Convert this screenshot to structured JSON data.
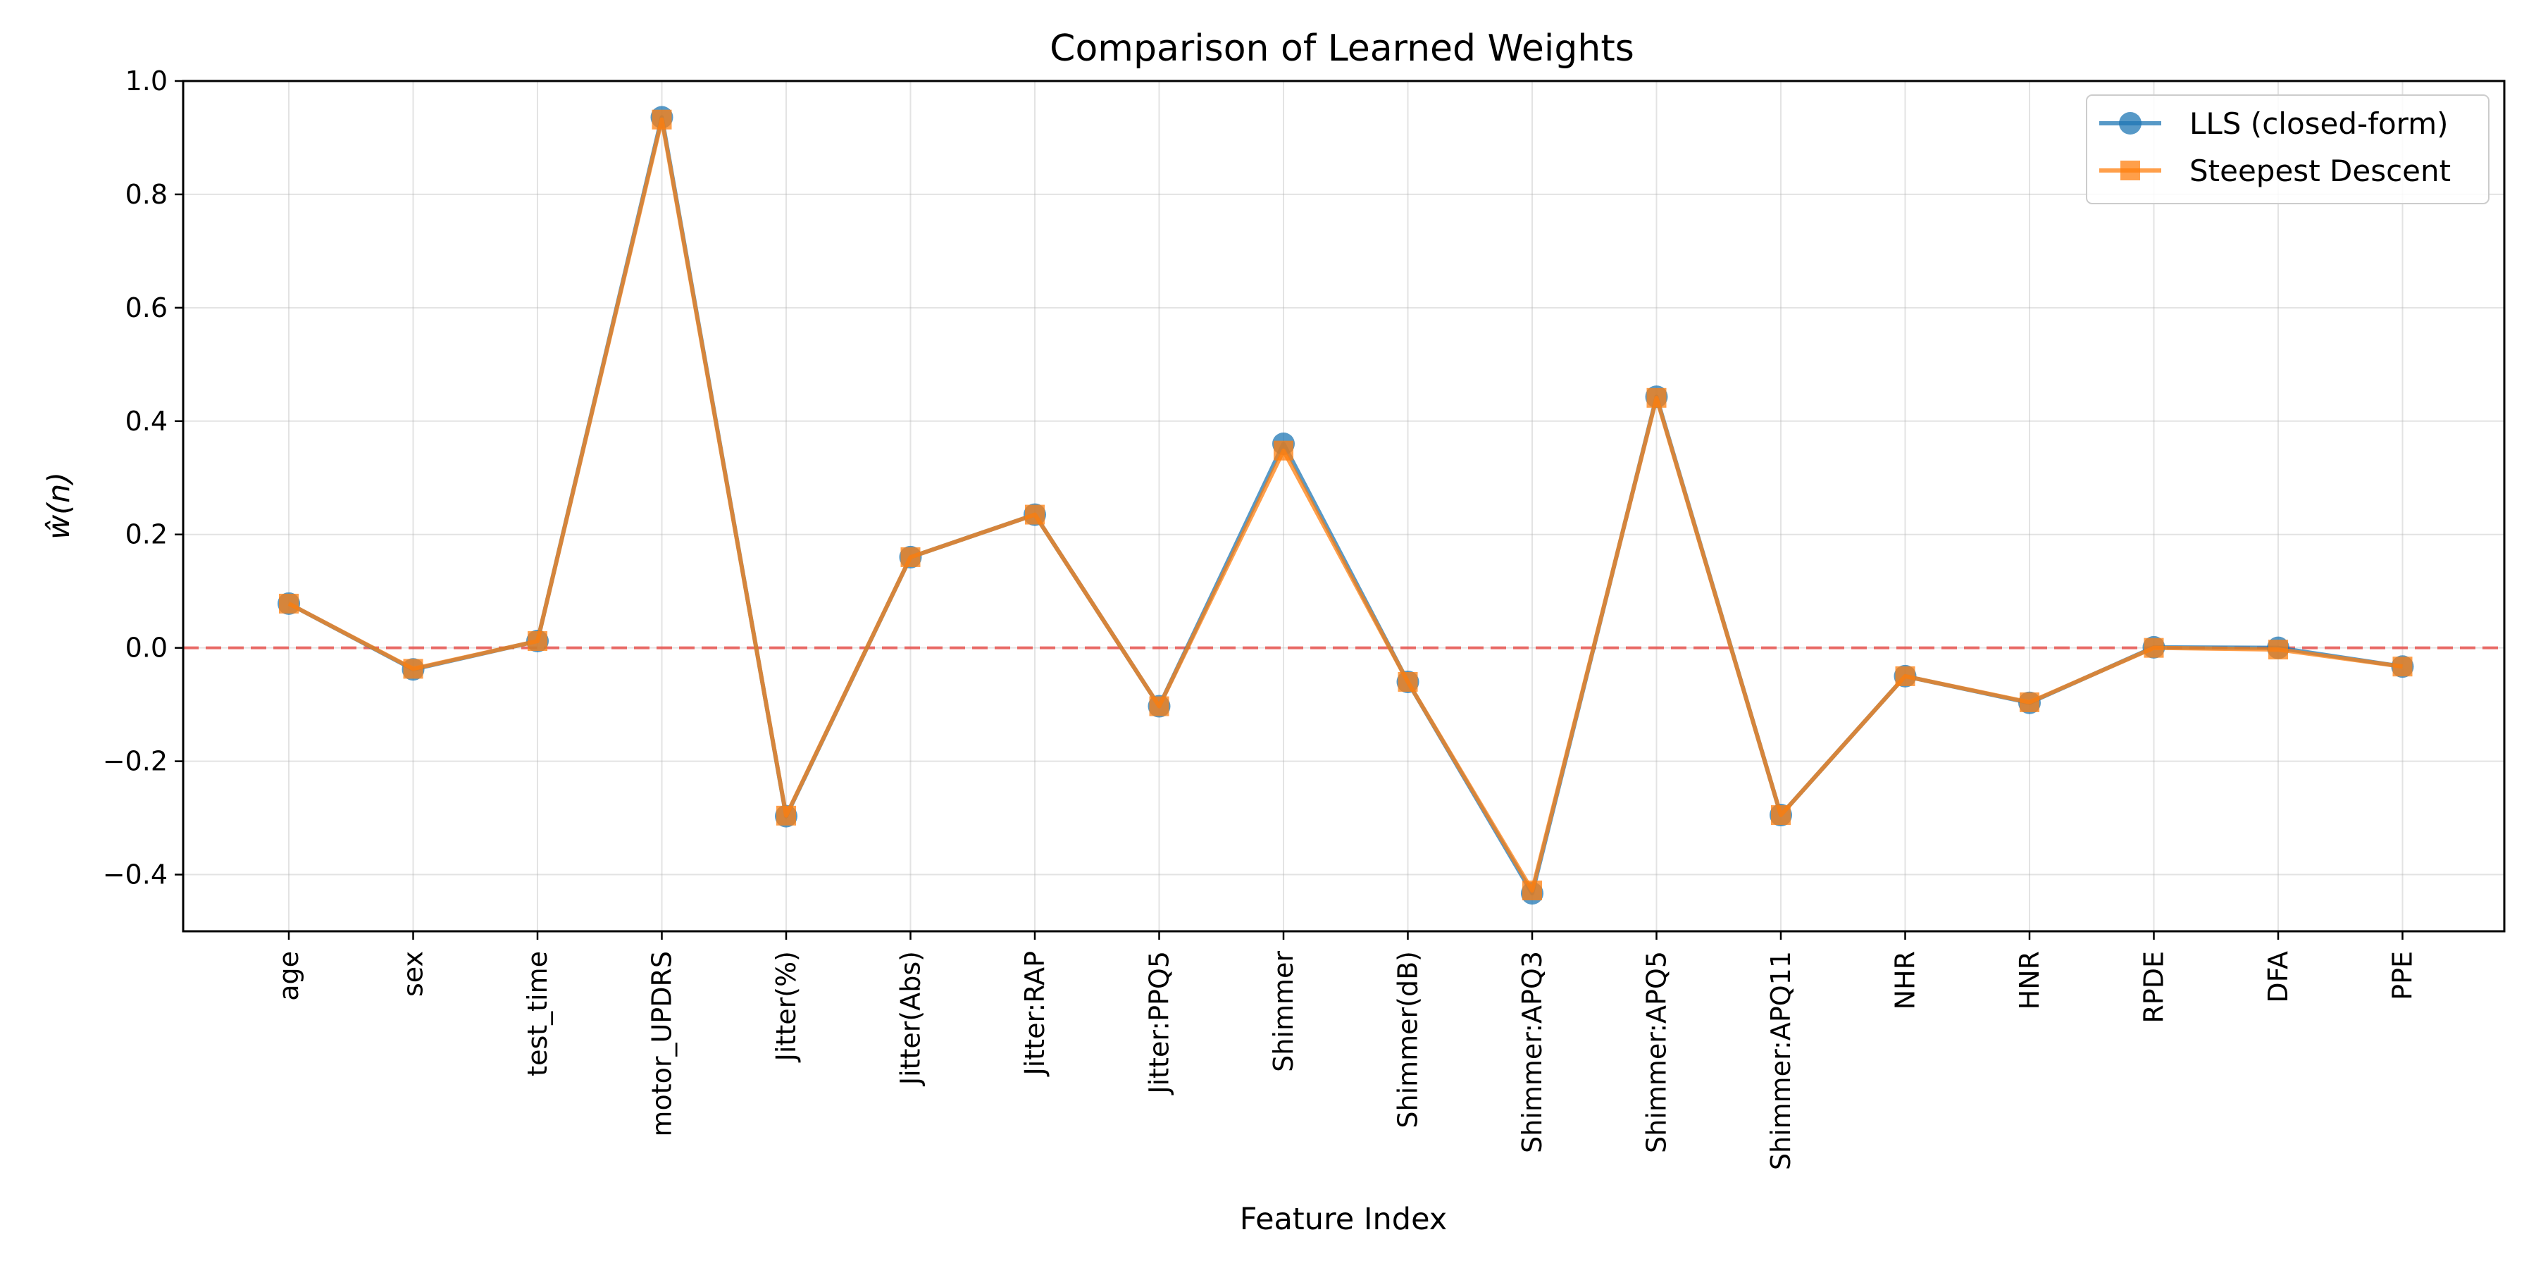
{
  "chart_data": {
    "type": "line",
    "title": "Comparison of Learned Weights",
    "xlabel": "Feature Index",
    "ylabel": "ŵ(n)",
    "categories": [
      "age",
      "sex",
      "test_time",
      "motor_UPDRS",
      "Jitter(%)",
      "Jitter(Abs)",
      "Jitter:RAP",
      "Jitter:PPQ5",
      "Shimmer",
      "Shimmer(dB)",
      "Shimmer:APQ3",
      "Shimmer:APQ5",
      "Shimmer:APQ11",
      "NHR",
      "HNR",
      "RPDE",
      "DFA",
      "PPE"
    ],
    "series": [
      {
        "name": "LLS (closed-form)",
        "marker": "circle",
        "color": "#1f77b4",
        "values": [
          0.078,
          -0.038,
          0.012,
          0.936,
          -0.297,
          0.16,
          0.235,
          -0.103,
          0.36,
          -0.06,
          -0.433,
          0.443,
          -0.295,
          -0.05,
          -0.097,
          0.001,
          0.0,
          -0.033
        ]
      },
      {
        "name": "Steepest Descent",
        "marker": "square",
        "color": "#ff7f0e",
        "values": [
          0.078,
          -0.037,
          0.012,
          0.932,
          -0.296,
          0.16,
          0.235,
          -0.103,
          0.348,
          -0.06,
          -0.428,
          0.441,
          -0.295,
          -0.05,
          -0.096,
          0.0,
          -0.003,
          -0.033
        ]
      }
    ],
    "ylim": [
      -0.5,
      1.0
    ],
    "yticks": [
      -0.4,
      -0.2,
      0.0,
      0.2,
      0.4,
      0.6,
      0.8,
      1.0
    ],
    "ytick_labels": [
      "−0.4",
      "−0.2",
      "0.0",
      "0.2",
      "0.4",
      "0.6",
      "0.8",
      "1.0"
    ],
    "reference_line": {
      "y": 0,
      "style": "dashed",
      "color": "#e8534f"
    },
    "grid": true,
    "legend_position": "top-right"
  }
}
